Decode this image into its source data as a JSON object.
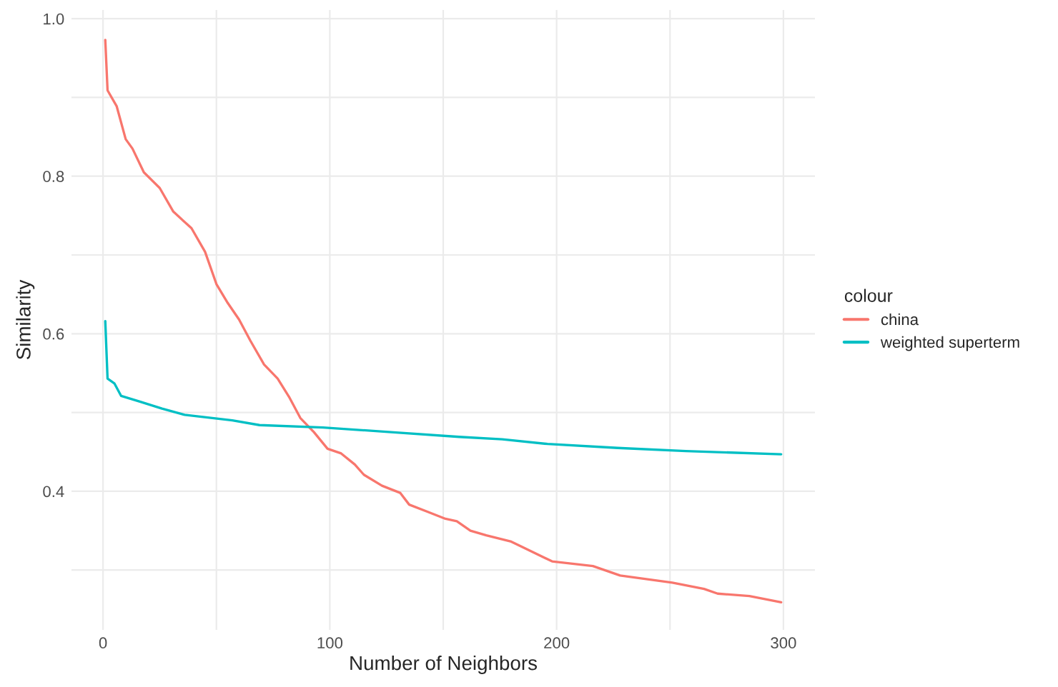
{
  "chart_data": {
    "type": "line",
    "xlabel": "Number of Neighbors",
    "ylabel": "Similarity",
    "legend_title": "colour",
    "legend": "right",
    "grid": true,
    "marker": "none",
    "line_style": "solid",
    "xlim": [
      -13.9,
      313.9
    ],
    "xticks": [
      0,
      {
        "value": 50,
        "label": null
      },
      100,
      {
        "value": 150,
        "label": null
      },
      200,
      {
        "value": 250,
        "label": null
      },
      300
    ],
    "ylim": [
      0.224,
      1.011
    ],
    "yticks": [
      {
        "value": 0.3,
        "label": null
      },
      0.4,
      {
        "value": 0.5,
        "label": null
      },
      0.6,
      {
        "value": 0.7,
        "label": null
      },
      0.8,
      {
        "value": 0.9,
        "label": null
      },
      {
        "value": 1.0,
        "label": "1.0"
      }
    ],
    "series": [
      {
        "name": "china",
        "color": "#F8766D",
        "x": [
          1,
          2,
          6,
          10,
          13,
          18,
          25,
          31,
          39,
          45,
          50,
          55,
          60,
          65,
          71,
          77,
          82,
          87,
          93,
          99,
          105,
          111,
          115,
          123,
          131,
          135,
          143,
          151,
          156,
          162,
          169,
          180,
          198,
          216,
          228,
          251,
          265,
          271,
          285,
          299
        ],
        "values": [
          0.973,
          0.909,
          0.889,
          0.847,
          0.835,
          0.805,
          0.785,
          0.755,
          0.734,
          0.704,
          0.663,
          0.639,
          0.618,
          0.591,
          0.561,
          0.543,
          0.52,
          0.493,
          0.475,
          0.454,
          0.448,
          0.434,
          0.421,
          0.407,
          0.398,
          0.383,
          0.374,
          0.365,
          0.362,
          0.35,
          0.344,
          0.336,
          0.311,
          0.305,
          0.293,
          0.284,
          0.276,
          0.27,
          0.267,
          0.259
        ]
      },
      {
        "name": "weighted superterm",
        "color": "#00BFC4",
        "x": [
          1,
          2,
          5,
          8,
          16,
          26,
          36,
          57,
          69,
          97,
          127,
          157,
          176,
          196,
          227,
          257,
          299
        ],
        "values": [
          0.616,
          0.543,
          0.537,
          0.521,
          0.514,
          0.505,
          0.497,
          0.49,
          0.484,
          0.481,
          0.475,
          0.469,
          0.466,
          0.46,
          0.455,
          0.451,
          0.447
        ]
      }
    ]
  }
}
